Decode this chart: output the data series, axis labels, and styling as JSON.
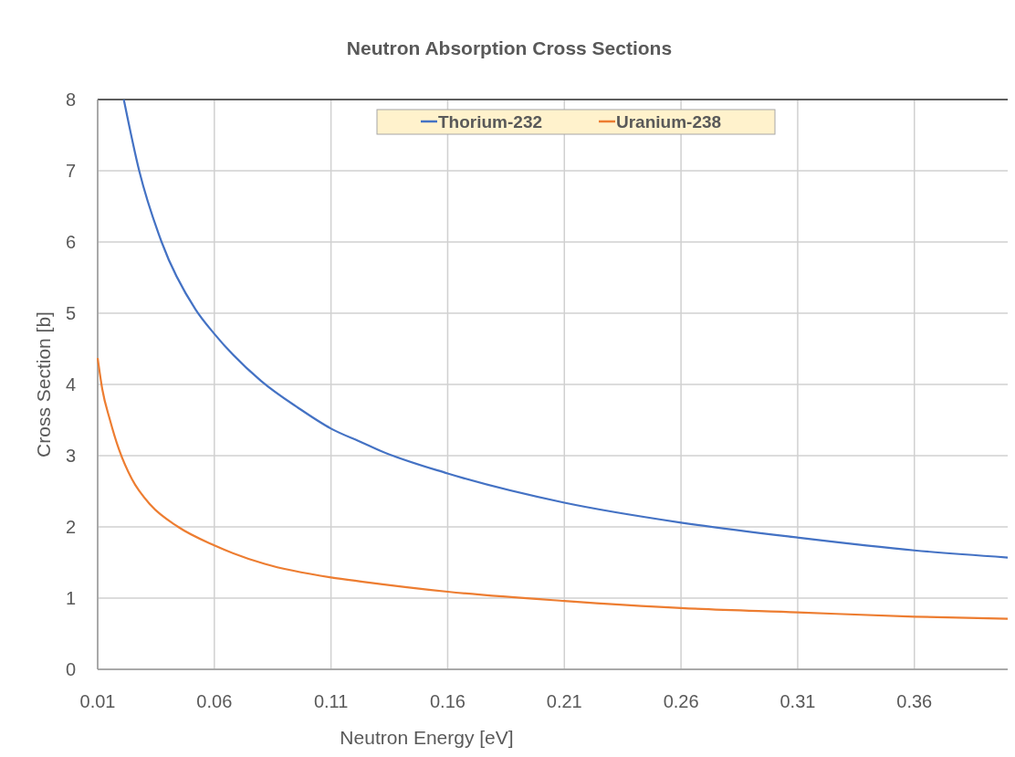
{
  "chart_data": {
    "type": "line",
    "title": "Neutron Absorption Cross Sections",
    "xlabel": "Neutron Energy [eV]",
    "ylabel": "Cross Section [b]",
    "xlim": [
      0.01,
      0.4
    ],
    "xticks": [
      0.01,
      0.06,
      0.11,
      0.16,
      0.21,
      0.26,
      0.31,
      0.36
    ],
    "ylim": [
      0,
      8
    ],
    "yticks": [
      0,
      1,
      2,
      3,
      4,
      5,
      6,
      7,
      8
    ],
    "grid": true,
    "legend": "top",
    "marker": "none",
    "line_style": "solid",
    "series": [
      {
        "name": "Thorium-232",
        "color": "#4472c4",
        "x": [
          0.0212,
          0.0278,
          0.0374,
          0.052,
          0.06,
          0.08,
          0.096,
          0.11,
          0.1236,
          0.131,
          0.16,
          0.21,
          0.26,
          0.31,
          0.36,
          0.4
        ],
        "values": [
          8,
          7,
          6,
          5.05,
          4.71,
          4.05,
          3.67,
          3.38,
          3.18,
          3.07,
          2.75,
          2.34,
          2.06,
          1.85,
          1.67,
          1.57
        ]
      },
      {
        "name": "Uranium-238",
        "color": "#ed7d31",
        "x": [
          0.01,
          0.012,
          0.0152,
          0.0191,
          0.0247,
          0.0326,
          0.0445,
          0.06,
          0.0816,
          0.11,
          0.1236,
          0.16,
          0.21,
          0.26,
          0.31,
          0.36,
          0.4
        ],
        "values": [
          4.37,
          3.93,
          3.51,
          3.09,
          2.67,
          2.31,
          2,
          1.74,
          1.48,
          1.29,
          1.23,
          1.09,
          0.96,
          0.86,
          0.8,
          0.74,
          0.71
        ]
      }
    ]
  }
}
